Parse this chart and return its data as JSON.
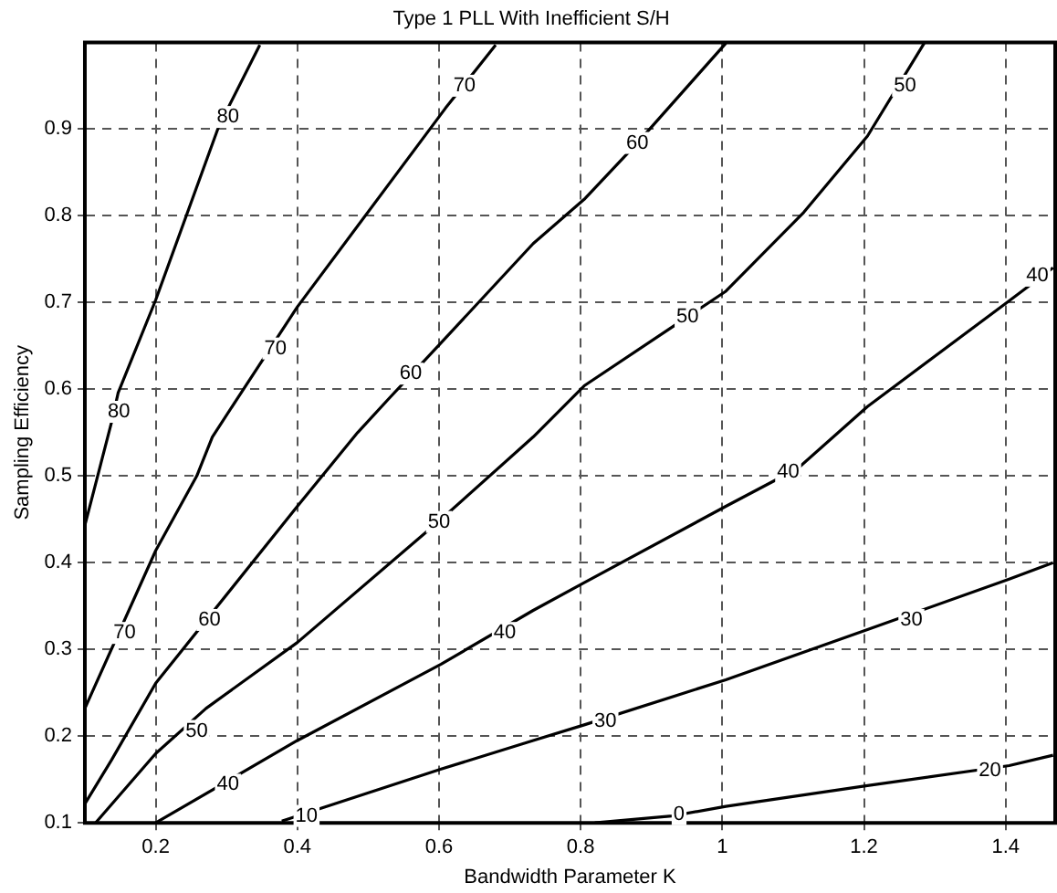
{
  "chart_data": {
    "type": "line",
    "title": "Type 1 PLL With Inefficient S/H",
    "xlabel": "Bandwidth Parameter K",
    "ylabel": "Sampling Efficiency",
    "xlim": [
      0.1,
      1.47
    ],
    "ylim": [
      0.1,
      1.0
    ],
    "xticks": [
      0.2,
      0.4,
      0.6,
      0.8,
      1,
      1.2,
      1.4
    ],
    "yticks": [
      0.1,
      0.2,
      0.3,
      0.4,
      0.5,
      0.6,
      0.7,
      0.8,
      0.9
    ],
    "grid": true,
    "legend": false,
    "marker": "none",
    "line_style": "solid",
    "series": [
      {
        "color": "#000000",
        "x": [
          0.1,
          0.138,
          0.147,
          0.2,
          0.289,
          0.347
        ],
        "values": [
          0.443,
          0.563,
          0.596,
          0.703,
          0.903,
          0.997
        ]
      },
      {
        "color": "#000000",
        "x": [
          0.1,
          0.2,
          0.258,
          0.28,
          0.315,
          0.4,
          0.609,
          0.68
        ],
        "values": [
          0.232,
          0.414,
          0.5,
          0.545,
          0.589,
          0.695,
          0.924,
          0.997
        ]
      },
      {
        "color": "#000000",
        "x": [
          0.1,
          0.138,
          0.2,
          0.4,
          0.485,
          0.529,
          0.6,
          0.733,
          0.805,
          0.88,
          1.005
        ],
        "values": [
          0.122,
          0.173,
          0.261,
          0.465,
          0.55,
          0.589,
          0.651,
          0.768,
          0.819,
          0.884,
          0.999
        ]
      },
      {
        "color": "#000000",
        "x": [
          0.115,
          0.2,
          0.271,
          0.4,
          0.603,
          0.733,
          0.805,
          1.005,
          1.115,
          1.205,
          1.285
        ],
        "values": [
          0.1,
          0.18,
          0.232,
          0.308,
          0.45,
          0.545,
          0.604,
          0.713,
          0.804,
          0.892,
          0.999
        ]
      },
      {
        "color": "#000000",
        "x": [
          0.2,
          0.4,
          0.603,
          0.733,
          0.805,
          1.005,
          1.107,
          1.205,
          1.405,
          1.467
        ],
        "values": [
          0.1,
          0.195,
          0.283,
          0.345,
          0.377,
          0.465,
          0.509,
          0.58,
          0.702,
          0.74
        ]
      },
      {
        "color": "#000000",
        "x": [
          0.378,
          0.603,
          0.733,
          0.805,
          1.005,
          1.205,
          1.405,
          1.467
        ],
        "values": [
          0.102,
          0.162,
          0.195,
          0.213,
          0.265,
          0.323,
          0.381,
          0.4
        ]
      },
      {
        "color": "#000000",
        "x": [
          0.82,
          0.929,
          1.005,
          1.205,
          1.405,
          1.467
        ],
        "values": [
          0.1,
          0.108,
          0.119,
          0.143,
          0.166,
          0.178
        ]
      }
    ],
    "annotations": [
      {
        "text": "80",
        "x": 0.302,
        "y": 0.914
      },
      {
        "text": "80",
        "x": 0.148,
        "y": 0.574
      },
      {
        "text": "70",
        "x": 0.636,
        "y": 0.95
      },
      {
        "text": "70",
        "x": 0.369,
        "y": 0.647
      },
      {
        "text": "70",
        "x": 0.156,
        "y": 0.319
      },
      {
        "text": "60",
        "x": 0.88,
        "y": 0.884
      },
      {
        "text": "60",
        "x": 0.56,
        "y": 0.618
      },
      {
        "text": "60",
        "x": 0.276,
        "y": 0.334
      },
      {
        "text": "50",
        "x": 1.258,
        "y": 0.95
      },
      {
        "text": "50",
        "x": 0.951,
        "y": 0.684
      },
      {
        "text": "50",
        "x": 0.6,
        "y": 0.447
      },
      {
        "text": "50",
        "x": 0.258,
        "y": 0.206
      },
      {
        "text": "40",
        "x": 1.445,
        "y": 0.731
      },
      {
        "text": "40",
        "x": 1.093,
        "y": 0.505
      },
      {
        "text": "40",
        "x": 0.693,
        "y": 0.319
      },
      {
        "text": "40",
        "x": 0.302,
        "y": 0.144
      },
      {
        "text": "30",
        "x": 1.267,
        "y": 0.334
      },
      {
        "text": "30",
        "x": 0.835,
        "y": 0.217
      },
      {
        "text": "20",
        "x": 1.378,
        "y": 0.16
      },
      {
        "text": "10",
        "x": 0.413,
        "y": 0.108
      },
      {
        "text": "0",
        "x": 0.939,
        "y": 0.11
      }
    ]
  }
}
